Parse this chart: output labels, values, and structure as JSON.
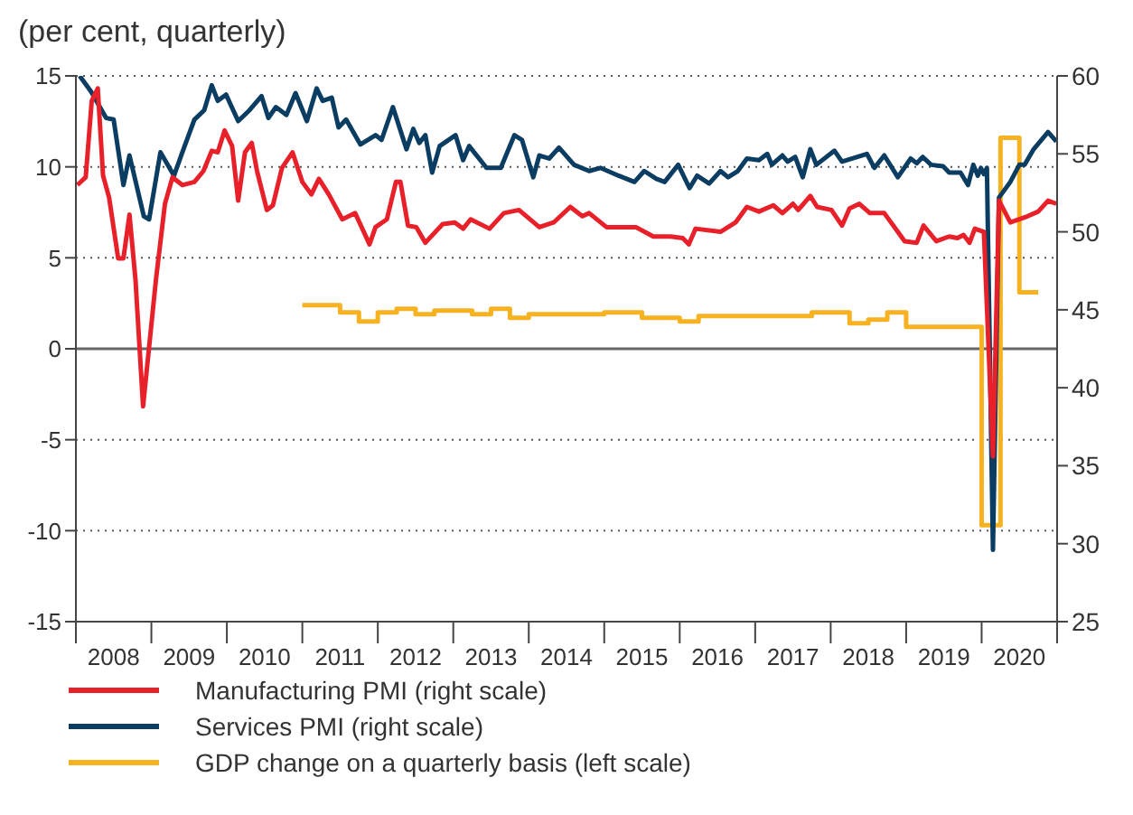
{
  "chart_data": {
    "type": "line",
    "ylabel": "(per cent, quarterly)",
    "xlim": [
      2008,
      2021
    ],
    "xticks": [
      {
        "value": 2008,
        "label": null
      },
      {
        "value": 2008.5,
        "label": "2008"
      },
      {
        "value": 2009,
        "label": null
      },
      {
        "value": 2009.5,
        "label": "2009"
      },
      {
        "value": 2010,
        "label": null
      },
      {
        "value": 2010.5,
        "label": "2010"
      },
      {
        "value": 2011,
        "label": null
      },
      {
        "value": 2011.5,
        "label": "2011"
      },
      {
        "value": 2012,
        "label": null
      },
      {
        "value": 2012.5,
        "label": "2012"
      },
      {
        "value": 2013,
        "label": null
      },
      {
        "value": 2013.5,
        "label": "2013"
      },
      {
        "value": 2014,
        "label": null
      },
      {
        "value": 2014.5,
        "label": "2014"
      },
      {
        "value": 2015,
        "label": null
      },
      {
        "value": 2015.5,
        "label": "2015"
      },
      {
        "value": 2016,
        "label": null
      },
      {
        "value": 2016.5,
        "label": "2016"
      },
      {
        "value": 2017,
        "label": null
      },
      {
        "value": 2017.5,
        "label": "2017"
      },
      {
        "value": 2018,
        "label": null
      },
      {
        "value": 2018.5,
        "label": "2018"
      },
      {
        "value": 2019,
        "label": null
      },
      {
        "value": 2019.5,
        "label": "2019"
      },
      {
        "value": 2020,
        "label": null
      },
      {
        "value": 2020.5,
        "label": "2020"
      },
      {
        "value": 2021,
        "label": null
      }
    ],
    "ylim": [
      -15,
      15
    ],
    "yticks": [
      -15,
      -10,
      -5,
      0,
      5,
      10,
      15
    ],
    "y2lim": [
      25,
      60
    ],
    "y2ticks": [
      25,
      30,
      35,
      40,
      45,
      50,
      55,
      60
    ],
    "grid": "y",
    "legend": "bottom",
    "line_style": "solid",
    "marker": "none",
    "ref_lines": [
      {
        "axis": "y",
        "value": 0,
        "color": "#666666",
        "line_style": "solid"
      }
    ],
    "series": [
      {
        "name": "Manufacturing PMI (right scale)",
        "color": "#e8202a",
        "axis": "y2",
        "x": [
          2008.02,
          2008.13,
          2008.21,
          2008.29,
          2008.36,
          2008.44,
          2008.56,
          2008.63,
          2008.71,
          2008.79,
          2008.89,
          2009.06,
          2009.18,
          2009.28,
          2009.41,
          2009.57,
          2009.69,
          2009.8,
          2009.88,
          2009.97,
          2010.07,
          2010.15,
          2010.24,
          2010.33,
          2010.4,
          2010.53,
          2010.61,
          2010.73,
          2010.87,
          2011.0,
          2011.12,
          2011.22,
          2011.35,
          2011.53,
          2011.7,
          2011.89,
          2011.97,
          2012.12,
          2012.24,
          2012.3,
          2012.4,
          2012.51,
          2012.63,
          2012.86,
          2013.02,
          2013.13,
          2013.23,
          2013.48,
          2013.67,
          2013.87,
          2014.14,
          2014.33,
          2014.55,
          2014.71,
          2014.8,
          2015.03,
          2015.42,
          2015.65,
          2015.88,
          2016.04,
          2016.12,
          2016.21,
          2016.54,
          2016.74,
          2016.89,
          2017.05,
          2017.24,
          2017.36,
          2017.5,
          2017.57,
          2017.73,
          2017.82,
          2018.01,
          2018.15,
          2018.25,
          2018.38,
          2018.52,
          2018.71,
          2018.98,
          2019.14,
          2019.23,
          2019.4,
          2019.57,
          2019.68,
          2019.76,
          2019.84,
          2019.91,
          2020.03,
          2020.15,
          2020.23,
          2020.38,
          2020.61,
          2020.75,
          2020.88,
          2020.99
        ],
        "values": [
          53.0,
          53.5,
          58.4,
          59.2,
          53.6,
          52.2,
          48.3,
          48.3,
          51.1,
          46.9,
          38.8,
          46.9,
          51.8,
          53.5,
          53.0,
          53.2,
          53.9,
          55.2,
          55.1,
          56.5,
          55.5,
          52.0,
          55.1,
          55.7,
          53.9,
          51.4,
          51.7,
          54.1,
          55.1,
          53.2,
          52.4,
          53.4,
          52.4,
          50.8,
          51.2,
          49.2,
          50.3,
          50.8,
          53.2,
          53.2,
          50.4,
          50.3,
          49.3,
          50.5,
          50.6,
          50.2,
          50.8,
          50.2,
          51.2,
          51.4,
          50.3,
          50.6,
          51.6,
          51.0,
          51.2,
          50.3,
          50.3,
          49.7,
          49.7,
          49.6,
          49.2,
          50.2,
          50.0,
          50.6,
          51.6,
          51.3,
          51.7,
          51.2,
          51.8,
          51.4,
          52.3,
          51.6,
          51.4,
          50.4,
          51.5,
          51.8,
          51.2,
          51.2,
          49.4,
          49.3,
          50.4,
          49.4,
          49.7,
          49.6,
          49.8,
          49.3,
          50.2,
          50.0,
          35.6,
          52.0,
          50.6,
          51.0,
          51.3,
          52.0,
          51.8
        ]
      },
      {
        "name": "Services PMI (right scale)",
        "color": "#0b3d62",
        "axis": "y2",
        "x": [
          2008.05,
          2008.2,
          2008.4,
          2008.5,
          2008.63,
          2008.71,
          2008.9,
          2008.97,
          2009.12,
          2009.3,
          2009.41,
          2009.57,
          2009.7,
          2009.8,
          2009.88,
          2009.99,
          2010.15,
          2010.3,
          2010.46,
          2010.55,
          2010.65,
          2010.79,
          2010.91,
          2011.06,
          2011.19,
          2011.27,
          2011.39,
          2011.48,
          2011.58,
          2011.77,
          2011.97,
          2012.05,
          2012.2,
          2012.38,
          2012.47,
          2012.55,
          2012.63,
          2012.72,
          2012.82,
          2013.03,
          2013.13,
          2013.21,
          2013.44,
          2013.63,
          2013.81,
          2013.91,
          2014.06,
          2014.14,
          2014.27,
          2014.4,
          2014.6,
          2014.8,
          2014.95,
          2015.19,
          2015.4,
          2015.53,
          2015.69,
          2015.8,
          2015.98,
          2016.13,
          2016.23,
          2016.39,
          2016.54,
          2016.64,
          2016.77,
          2016.89,
          2017.05,
          2017.16,
          2017.22,
          2017.36,
          2017.43,
          2017.53,
          2017.63,
          2017.73,
          2017.81,
          2018.05,
          2018.15,
          2018.48,
          2018.58,
          2018.71,
          2018.89,
          2019.06,
          2019.14,
          2019.22,
          2019.33,
          2019.49,
          2019.57,
          2019.72,
          2019.82,
          2019.89,
          2019.95,
          2019.99,
          2020.03,
          2020.07,
          2020.15,
          2020.23,
          2020.38,
          2020.5,
          2020.57,
          2020.69,
          2020.88,
          2020.99
        ],
        "values": [
          60.0,
          59.0,
          57.3,
          57.2,
          53.0,
          54.9,
          51.0,
          50.8,
          55.1,
          53.6,
          55.1,
          57.2,
          57.8,
          59.4,
          58.4,
          58.8,
          57.1,
          57.8,
          58.7,
          57.3,
          58.0,
          57.5,
          58.9,
          57.1,
          59.2,
          58.4,
          58.6,
          56.7,
          57.2,
          55.6,
          56.2,
          55.9,
          58.0,
          55.3,
          56.6,
          55.7,
          56.2,
          53.8,
          55.5,
          56.2,
          54.6,
          55.5,
          54.1,
          54.1,
          56.2,
          55.9,
          53.5,
          54.9,
          54.7,
          55.4,
          54.3,
          53.9,
          54.1,
          53.6,
          53.2,
          53.9,
          53.4,
          53.2,
          54.3,
          52.8,
          53.6,
          53.1,
          53.9,
          53.5,
          53.9,
          54.7,
          54.6,
          55.0,
          54.3,
          54.9,
          54.5,
          54.8,
          53.5,
          55.3,
          54.3,
          55.2,
          54.5,
          55.0,
          54.1,
          54.9,
          53.5,
          54.7,
          54.4,
          54.8,
          54.3,
          54.2,
          53.8,
          53.8,
          53.0,
          54.3,
          53.6,
          54.1,
          53.7,
          54.1,
          29.6,
          52.2,
          53.2,
          54.3,
          54.3,
          55.3,
          56.4,
          55.8
        ]
      },
      {
        "name": "GDP change on a quarterly basis (left scale)",
        "color": "#f6b221",
        "type": "step",
        "x": [
          2011.0,
          2011.25,
          2011.5,
          2011.75,
          2012.0,
          2012.25,
          2012.5,
          2012.75,
          2013.0,
          2013.25,
          2013.5,
          2013.75,
          2014.0,
          2014.25,
          2014.5,
          2014.75,
          2015.0,
          2015.25,
          2015.5,
          2015.75,
          2016.0,
          2016.25,
          2016.5,
          2016.75,
          2017.0,
          2017.25,
          2017.5,
          2017.75,
          2018.0,
          2018.25,
          2018.5,
          2018.75,
          2019.0,
          2019.25,
          2019.5,
          2019.75,
          2020.0,
          2020.25,
          2020.5,
          2020.75
        ],
        "values": [
          2.4,
          2.4,
          2.0,
          1.5,
          2.0,
          2.2,
          1.9,
          2.1,
          2.1,
          1.9,
          2.2,
          1.7,
          1.9,
          1.9,
          1.9,
          1.9,
          2.0,
          2.0,
          1.7,
          1.7,
          1.5,
          1.8,
          1.8,
          1.8,
          1.8,
          1.8,
          1.8,
          2.0,
          2.0,
          1.4,
          1.6,
          2.0,
          1.2,
          1.2,
          1.2,
          1.2,
          -9.7,
          11.6,
          3.1,
          3.1
        ]
      }
    ]
  }
}
